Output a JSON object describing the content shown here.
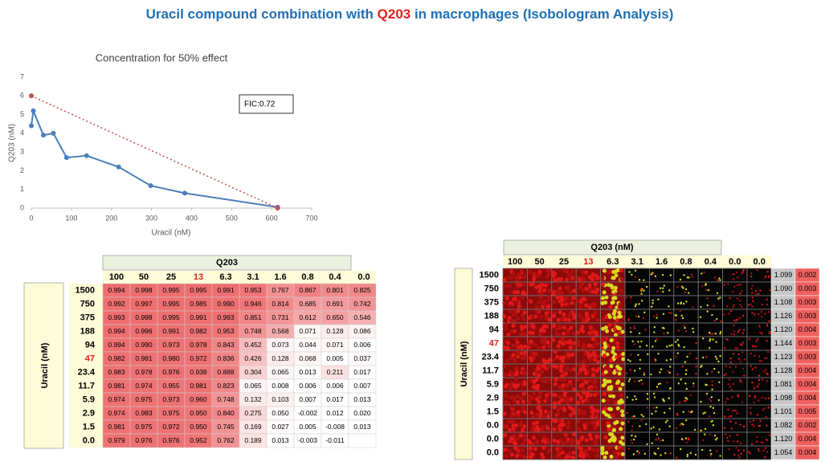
{
  "title": {
    "parts": [
      "Uracil compound combination with ",
      "Q203",
      " in macrophages (Isobologram Analysis)"
    ],
    "color": "#1f6fb4",
    "highlight_color": "#e02020"
  },
  "chart_data": {
    "type": "line",
    "title": "Concentration for 50% effect",
    "x_label": "Uracil (nM)",
    "y_label": "Q203 (nM)",
    "annotation": "FIC:0.72",
    "xlim": [
      0,
      700
    ],
    "xticks": [
      0,
      100,
      200,
      300,
      400,
      500,
      600,
      700
    ],
    "ylim": [
      0,
      7
    ],
    "yticks": [
      0,
      1,
      2,
      3,
      4,
      5,
      6,
      7
    ],
    "series": [
      {
        "color": "#4a7ebb",
        "x": [
          0,
          5,
          30,
          55,
          88,
          138,
          218,
          298,
          383,
          615
        ],
        "values": [
          4.4,
          5.2,
          3.9,
          4.0,
          2.7,
          2.8,
          2.2,
          1.2,
          0.8,
          0.05
        ]
      },
      {
        "color": "#c0504d",
        "dashed": true,
        "x": [
          0,
          615
        ],
        "values": [
          6,
          0
        ]
      }
    ]
  },
  "table": {
    "header": "Q203",
    "row_header": "Uracil (nM)",
    "columns": [
      "100",
      "50",
      "25",
      "13",
      "6.3",
      "3.1",
      "1.6",
      "0.8",
      "0.4",
      "0.0"
    ],
    "row_labels": [
      "1500",
      "750",
      "375",
      "188",
      "94",
      "47",
      "23.4",
      "11.7",
      "5.9",
      "2.9",
      "1.5",
      "0.0"
    ],
    "highlight_column": 3,
    "highlight_row": 5,
    "rows": [
      [
        "0.994",
        "0.998",
        "0.995",
        "0.995",
        "0.991",
        "0.953",
        "0.767",
        "0.867",
        "0.801",
        "0.825"
      ],
      [
        "0.992",
        "0.997",
        "0.995",
        "0.985",
        "0.990",
        "0.946",
        "0.814",
        "0.685",
        "0.691",
        "0.742"
      ],
      [
        "0.993",
        "0.998",
        "0.995",
        "0.991",
        "0.993",
        "0.851",
        "0.731",
        "0.612",
        "0.650",
        "0.546"
      ],
      [
        "0.994",
        "0.996",
        "0.991",
        "0.982",
        "0.953",
        "0.748",
        "0.568",
        "0.071",
        "0.128",
        "0.086"
      ],
      [
        "0.994",
        "0.990",
        "0.973",
        "0.978",
        "0.843",
        "0.452",
        "0.073",
        "0.044",
        "0.071",
        "0.006"
      ],
      [
        "0.982",
        "0.981",
        "0.980",
        "0.972",
        "0.836",
        "0.426",
        "0.128",
        "0.068",
        "0.005",
        "0.037"
      ],
      [
        "0.983",
        "0.978",
        "0.976",
        "0.938",
        "0.888",
        "0.304",
        "0.065",
        "0.013",
        "0.211",
        "0.017"
      ],
      [
        "0.981",
        "0.974",
        "0.955",
        "0.981",
        "0.823",
        "0.065",
        "0.008",
        "0.006",
        "0.006",
        "0.007"
      ],
      [
        "0.974",
        "0.975",
        "0.973",
        "0.960",
        "0.748",
        "0.132",
        "0.103",
        "0.007",
        "0.017",
        "0.013"
      ],
      [
        "0.974",
        "0.983",
        "0.975",
        "0.950",
        "0.840",
        "0.275",
        "0.050",
        "-0.002",
        "0.012",
        "0.020"
      ],
      [
        "0.981",
        "0.975",
        "0.972",
        "0.950",
        "0.745",
        "0.169",
        "0.027",
        "0.005",
        "-0.008",
        "0.013"
      ],
      [
        "0.979",
        "0.976",
        "0.976",
        "0.952",
        "0.762",
        "0.189",
        "0.013",
        "-0.003",
        "-0.011",
        null
      ]
    ]
  },
  "image_panel": {
    "header": "Q203 (nM)",
    "row_header": "Uracil (nM)",
    "columns": [
      "100",
      "50",
      "25",
      "13",
      "6.3",
      "3.1",
      "1.6",
      "0.8",
      "0.4",
      "0.0",
      "0.0"
    ],
    "row_labels": [
      "1500",
      "750",
      "375",
      "188",
      "94",
      "47",
      "23.4",
      "11.7",
      "5.9",
      "2.9",
      "1.5",
      "0.0",
      "0.0",
      "0.0"
    ],
    "highlight_column": 3,
    "highlight_row": 5,
    "side_values": [
      [
        "1.099",
        "0.002"
      ],
      [
        "1.090",
        "0.003"
      ],
      [
        "1.108",
        "0.003"
      ],
      [
        "1.126",
        "0.003"
      ],
      [
        "1.120",
        "0.004"
      ],
      [
        "1.144",
        "0.003"
      ],
      [
        "1.123",
        "0.003"
      ],
      [
        "1.128",
        "0.004"
      ],
      [
        "1.081",
        "0.004"
      ],
      [
        "1.098",
        "0.004"
      ],
      [
        "1.101",
        "0.005"
      ],
      [
        "1.082",
        "0.002"
      ],
      [
        "1.120",
        "0.004"
      ],
      [
        "1.054",
        "0.004"
      ]
    ]
  }
}
